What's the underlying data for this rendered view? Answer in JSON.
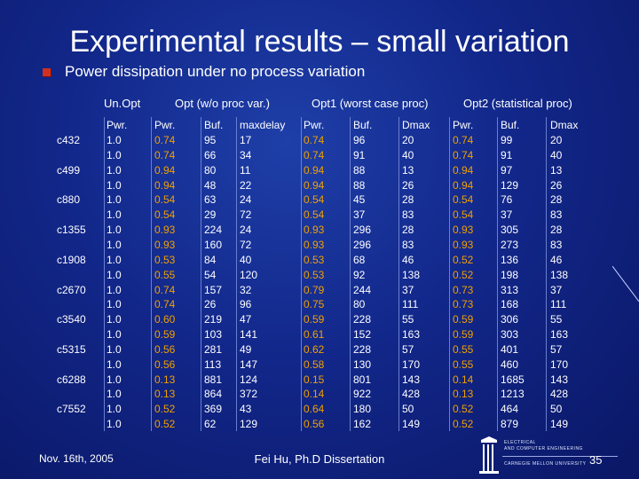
{
  "title": "Experimental results – small variation",
  "bullet": "Power dissipation under no process variation",
  "group_headers": [
    "Un.Opt",
    "Opt (w/o proc var.)",
    "Opt1 (worst case proc)",
    "Opt2 (statistical proc)"
  ],
  "column_titles": [
    "",
    "Pwr.",
    "Pwr.",
    "Buf.",
    "maxdelay",
    "Pwr.",
    "Buf.",
    "Dmax",
    "Pwr.",
    "Buf.",
    "Dmax"
  ],
  "circuits": [
    "c432",
    "c499",
    "c880",
    "c1355",
    "c1908",
    "c2670",
    "c3540",
    "c5315",
    "c6288",
    "c7552"
  ],
  "rows": [
    [
      "1.0",
      "0.74",
      "95",
      "17",
      "0.74",
      "96",
      "20",
      "0.74",
      "99",
      "20"
    ],
    [
      "1.0",
      "0.74",
      "66",
      "34",
      "0.74",
      "91",
      "40",
      "0.74",
      "91",
      "40"
    ],
    [
      "1.0",
      "0.94",
      "80",
      "11",
      "0.94",
      "88",
      "13",
      "0.94",
      "97",
      "13"
    ],
    [
      "1.0",
      "0.94",
      "48",
      "22",
      "0.94",
      "88",
      "26",
      "0.94",
      "129",
      "26"
    ],
    [
      "1.0",
      "0.54",
      "63",
      "24",
      "0.54",
      "45",
      "28",
      "0.54",
      "76",
      "28"
    ],
    [
      "1.0",
      "0.54",
      "29",
      "72",
      "0.54",
      "37",
      "83",
      "0.54",
      "37",
      "83"
    ],
    [
      "1.0",
      "0.93",
      "224",
      "24",
      "0.93",
      "296",
      "28",
      "0.93",
      "305",
      "28"
    ],
    [
      "1.0",
      "0.93",
      "160",
      "72",
      "0.93",
      "296",
      "83",
      "0.93",
      "273",
      "83"
    ],
    [
      "1.0",
      "0.53",
      "84",
      "40",
      "0.53",
      "68",
      "46",
      "0.52",
      "136",
      "46"
    ],
    [
      "1.0",
      "0.55",
      "54",
      "120",
      "0.53",
      "92",
      "138",
      "0.52",
      "198",
      "138"
    ],
    [
      "1.0",
      "0.74",
      "157",
      "32",
      "0.79",
      "244",
      "37",
      "0.73",
      "313",
      "37"
    ],
    [
      "1.0",
      "0.74",
      "26",
      "96",
      "0.75",
      "80",
      "111",
      "0.73",
      "168",
      "111"
    ],
    [
      "1.0",
      "0.60",
      "219",
      "47",
      "0.59",
      "228",
      "55",
      "0.59",
      "306",
      "55"
    ],
    [
      "1.0",
      "0.59",
      "103",
      "141",
      "0.61",
      "152",
      "163",
      "0.59",
      "303",
      "163"
    ],
    [
      "1.0",
      "0.56",
      "281",
      "49",
      "0.62",
      "228",
      "57",
      "0.55",
      "401",
      "57"
    ],
    [
      "1.0",
      "0.56",
      "113",
      "147",
      "0.58",
      "130",
      "170",
      "0.55",
      "460",
      "170"
    ],
    [
      "1.0",
      "0.13",
      "881",
      "124",
      "0.15",
      "801",
      "143",
      "0.14",
      "1685",
      "143"
    ],
    [
      "1.0",
      "0.13",
      "864",
      "372",
      "0.14",
      "922",
      "428",
      "0.13",
      "1213",
      "428"
    ],
    [
      "1.0",
      "0.52",
      "369",
      "43",
      "0.64",
      "180",
      "50",
      "0.52",
      "464",
      "50"
    ],
    [
      "1.0",
      "0.52",
      "62",
      "129",
      "0.56",
      "162",
      "149",
      "0.52",
      "879",
      "149"
    ]
  ],
  "footer": {
    "date": "Nov. 16th, 2005",
    "author": "Fei Hu, Ph.D Dissertation",
    "page": "35"
  },
  "logo_text": [
    "ELECTRICAL",
    "AND COMPUTER ENGINEERING",
    "CARNEGIE MELLON UNIVERSITY"
  ],
  "colors": {
    "background": "#12278a",
    "text": "#ffffff",
    "power_values": "#f0a000",
    "bullet": "#d03020"
  }
}
